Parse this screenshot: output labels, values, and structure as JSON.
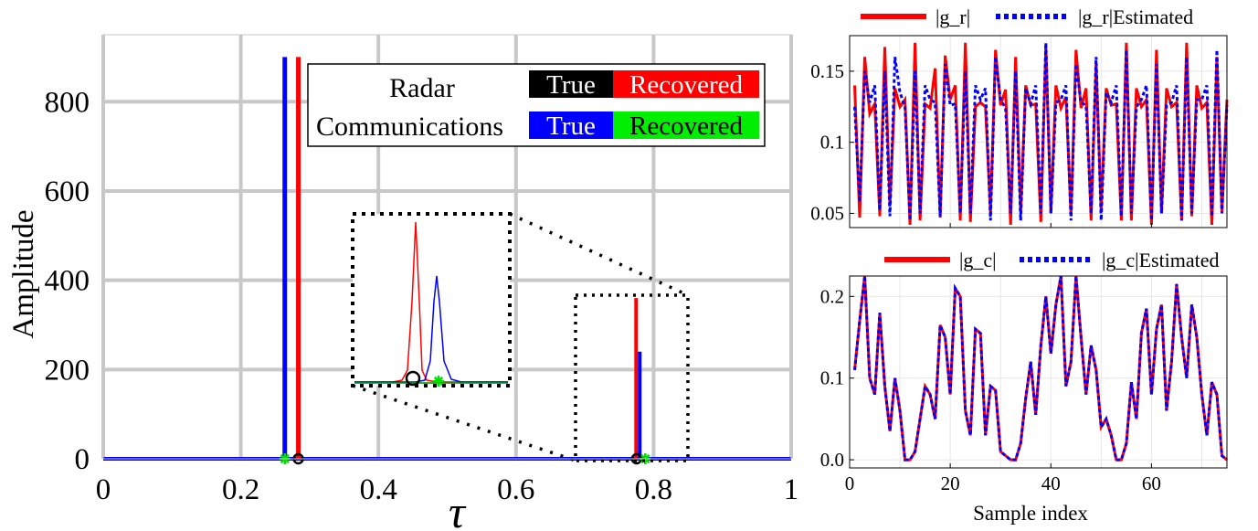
{
  "chart_data": [
    {
      "type": "line",
      "xlabel": "τ",
      "ylabel": "Amplitude",
      "xlim": [
        0,
        1
      ],
      "ylim": [
        0,
        950
      ],
      "xticks": [
        "0",
        "0.2",
        "0.4",
        "0.6",
        "0.8",
        "1"
      ],
      "yticks": [
        "0",
        "200",
        "400",
        "600",
        "800"
      ],
      "grid": true,
      "legend": {
        "placement": "top-center",
        "rows": [
          {
            "label": "Radar",
            "true_label": "True",
            "recovered_label": "Recovered"
          },
          {
            "label": "Communications",
            "true_label": "True",
            "recovered_label": "Recovered"
          }
        ]
      },
      "series": [
        {
          "name": "Radar True",
          "color": "#000000",
          "markers": [
            {
              "x": 0.265,
              "y": 0
            },
            {
              "x": 0.77,
              "y": 0
            }
          ]
        },
        {
          "name": "Radar Recovered",
          "color": "#ff0000",
          "x": [
            0,
            0.264,
            0.265,
            0.266,
            0.767,
            0.768,
            0.769,
            1
          ],
          "y": [
            0,
            0,
            900,
            0,
            0,
            360,
            0,
            0
          ]
        },
        {
          "name": "Communications True",
          "color": "#0000ff",
          "x": [
            0,
            0.247,
            0.248,
            0.249,
            0.771,
            0.772,
            0.773,
            1
          ],
          "y": [
            0,
            0,
            900,
            0,
            0,
            240,
            0,
            0
          ]
        },
        {
          "name": "Communications Recovered",
          "color": "#00dd00",
          "markers": [
            {
              "x": 0.248,
              "y": 0
            },
            {
              "x": 0.772,
              "y": 0
            }
          ]
        }
      ],
      "inset": {
        "zoom_x_range": [
          0.69,
          0.85
        ],
        "zoom_y_range": [
          -20,
          390
        ]
      }
    },
    {
      "type": "line",
      "xlim": [
        0,
        75
      ],
      "ylim": [
        0.04,
        0.175
      ],
      "yticks": [
        "0.05",
        "0.1",
        "0.15"
      ],
      "grid": true,
      "legend": {
        "placement": "top",
        "entries": [
          "|g_r|",
          "|g_r|Estimated"
        ]
      },
      "series": [
        {
          "name": "|g_r|",
          "color": "#ff0000",
          "values": [
            0.14,
            0.047,
            0.16,
            0.12,
            0.127,
            0.048,
            0.167,
            0.055,
            0.138,
            0.125,
            0.13,
            0.042,
            0.17,
            0.045,
            0.127,
            0.124,
            0.152,
            0.047,
            0.161,
            0.13,
            0.14,
            0.045,
            0.17,
            0.044,
            0.125,
            0.128,
            0.125,
            0.05,
            0.165,
            0.126,
            0.137,
            0.042,
            0.16,
            0.05,
            0.14,
            0.126,
            0.127,
            0.044,
            0.168,
            0.05,
            0.14,
            0.124,
            0.132,
            0.048,
            0.165,
            0.124,
            0.138,
            0.045,
            0.156,
            0.052,
            0.138,
            0.126,
            0.127,
            0.045,
            0.17,
            0.045,
            0.138,
            0.125,
            0.13,
            0.042,
            0.165,
            0.05,
            0.138,
            0.125,
            0.128,
            0.045,
            0.17,
            0.048,
            0.14,
            0.124,
            0.128,
            0.042,
            0.16,
            0.05,
            0.13
          ]
        },
        {
          "name": "|g_r|Estimated",
          "color": "#0000ff",
          "values": [
            0.125,
            0.058,
            0.15,
            0.128,
            0.14,
            0.052,
            0.15,
            0.048,
            0.16,
            0.135,
            0.125,
            0.045,
            0.15,
            0.05,
            0.14,
            0.13,
            0.128,
            0.048,
            0.155,
            0.126,
            0.127,
            0.05,
            0.15,
            0.05,
            0.14,
            0.13,
            0.138,
            0.045,
            0.16,
            0.13,
            0.124,
            0.05,
            0.15,
            0.045,
            0.138,
            0.127,
            0.14,
            0.05,
            0.17,
            0.05,
            0.128,
            0.13,
            0.14,
            0.045,
            0.155,
            0.128,
            0.126,
            0.05,
            0.16,
            0.045,
            0.135,
            0.128,
            0.14,
            0.048,
            0.165,
            0.05,
            0.125,
            0.13,
            0.14,
            0.045,
            0.155,
            0.05,
            0.126,
            0.128,
            0.14,
            0.045,
            0.16,
            0.05,
            0.13,
            0.13,
            0.14,
            0.048,
            0.165,
            0.05,
            0.126
          ]
        }
      ]
    },
    {
      "type": "line",
      "xlabel": "Sample index",
      "xlim": [
        0,
        75
      ],
      "ylim": [
        -0.01,
        0.225
      ],
      "xticks": [
        "0",
        "20",
        "40",
        "60"
      ],
      "yticks": [
        "0.0",
        "0.1",
        "0.2"
      ],
      "grid": true,
      "legend": {
        "placement": "top",
        "entries": [
          "|g_c|",
          "|g_c|Estimated"
        ]
      },
      "series": [
        {
          "name": "|g_c|",
          "color": "#ff0000",
          "values": [
            0.11,
            0.17,
            0.225,
            0.1,
            0.08,
            0.18,
            0.09,
            0.035,
            0.1,
            0.06,
            0.0,
            0.0,
            0.01,
            0.05,
            0.09,
            0.08,
            0.05,
            0.165,
            0.15,
            0.08,
            0.21,
            0.2,
            0.06,
            0.03,
            0.16,
            0.155,
            0.03,
            0.09,
            0.085,
            0.01,
            0.005,
            0.0,
            0.0,
            0.02,
            0.075,
            0.12,
            0.055,
            0.14,
            0.2,
            0.13,
            0.19,
            0.225,
            0.09,
            0.12,
            0.225,
            0.15,
            0.08,
            0.14,
            0.11,
            0.04,
            0.05,
            0.03,
            0.0,
            0.0,
            0.02,
            0.095,
            0.05,
            0.155,
            0.185,
            0.08,
            0.16,
            0.19,
            0.06,
            0.12,
            0.215,
            0.15,
            0.1,
            0.19,
            0.15,
            0.08,
            0.03,
            0.095,
            0.08,
            0.005,
            0.0
          ]
        },
        {
          "name": "|g_c|Estimated",
          "color": "#0000ff",
          "values": [
            0.11,
            0.17,
            0.225,
            0.1,
            0.08,
            0.18,
            0.09,
            0.035,
            0.1,
            0.06,
            0.0,
            0.0,
            0.01,
            0.05,
            0.09,
            0.08,
            0.05,
            0.165,
            0.15,
            0.08,
            0.21,
            0.2,
            0.06,
            0.03,
            0.16,
            0.155,
            0.03,
            0.09,
            0.085,
            0.01,
            0.005,
            0.0,
            0.0,
            0.02,
            0.075,
            0.12,
            0.055,
            0.14,
            0.2,
            0.13,
            0.19,
            0.225,
            0.09,
            0.12,
            0.225,
            0.15,
            0.08,
            0.14,
            0.11,
            0.04,
            0.05,
            0.03,
            0.0,
            0.0,
            0.02,
            0.095,
            0.05,
            0.155,
            0.185,
            0.08,
            0.16,
            0.19,
            0.06,
            0.12,
            0.215,
            0.15,
            0.1,
            0.19,
            0.15,
            0.08,
            0.03,
            0.095,
            0.08,
            0.005,
            0.0
          ]
        }
      ]
    }
  ]
}
